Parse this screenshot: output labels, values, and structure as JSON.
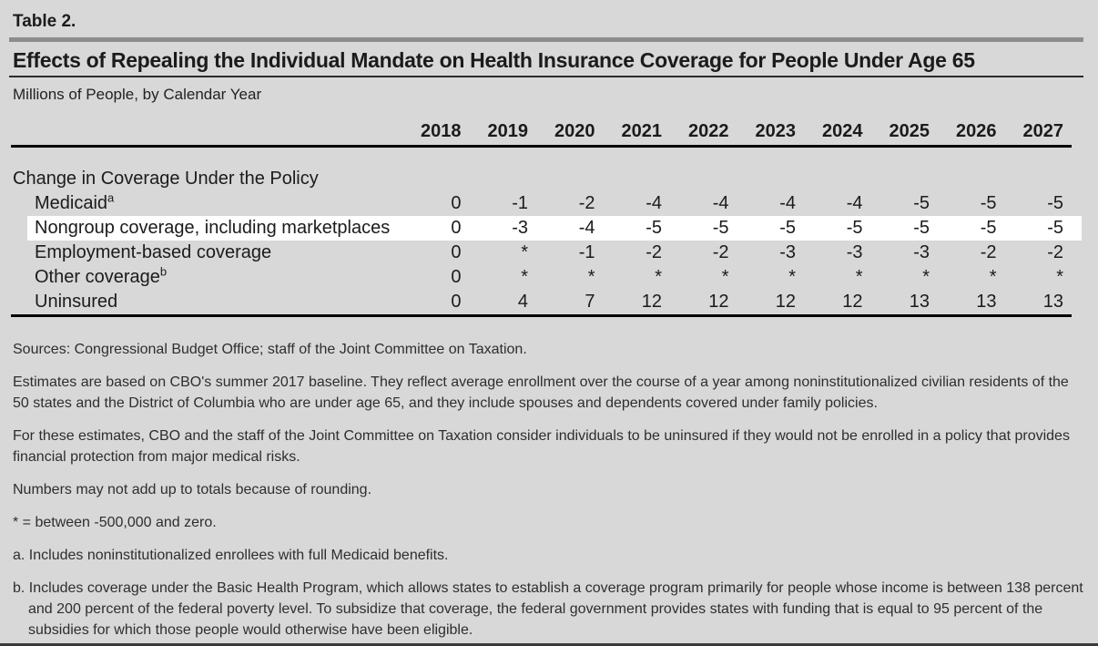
{
  "page": {
    "table_label": "Table 2.",
    "title": "Effects of Repealing the Individual Mandate on Health Insurance Coverage for People Under Age 65",
    "subtitle": "Millions of People, by Calendar Year"
  },
  "colors": {
    "background": "#d8d8d8",
    "highlight_row": "#ffffff",
    "rule_gray": "#8d8d8d",
    "rule_black": "#000000"
  },
  "table": {
    "years": [
      "2018",
      "2019",
      "2020",
      "2021",
      "2022",
      "2023",
      "2024",
      "2025",
      "2026",
      "2027"
    ],
    "section_header": "Change in Coverage Under the Policy",
    "rows": [
      {
        "label": "Medicaid",
        "sup": "a",
        "values": [
          "0",
          "-1",
          "-2",
          "-4",
          "-4",
          "-4",
          "-4",
          "-5",
          "-5",
          "-5"
        ]
      },
      {
        "label": "Nongroup coverage, including marketplaces",
        "values": [
          "0",
          "-3",
          "-4",
          "-5",
          "-5",
          "-5",
          "-5",
          "-5",
          "-5",
          "-5"
        ]
      },
      {
        "label": "Employment-based coverage",
        "values": [
          "0",
          "*",
          "-1",
          "-2",
          "-2",
          "-3",
          "-3",
          "-3",
          "-2",
          "-2"
        ]
      },
      {
        "label": "Other coverage",
        "sup": "b",
        "values": [
          "0",
          "*",
          "*",
          "*",
          "*",
          "*",
          "*",
          "*",
          "*",
          "*"
        ]
      },
      {
        "label": "Uninsured",
        "values": [
          "0",
          "4",
          "7",
          "12",
          "12",
          "12",
          "12",
          "13",
          "13",
          "13"
        ]
      }
    ]
  },
  "notes": {
    "sources": "Sources: Congressional Budget Office; staff of the Joint Committee on Taxation.",
    "para_baseline": "Estimates are based on CBO's summer 2017 baseline. They reflect average enrollment over the course of a year among noninstitutionalized civilian residents of the 50 states and the District of Columbia who are under age 65, and they include spouses and dependents covered under family policies.",
    "para_uninsured_definition": "For these estimates, CBO and the staff of the Joint Committee on Taxation consider individuals to be uninsured if they would not be enrolled in a policy that provides financial protection from major medical risks.",
    "para_rounding": "Numbers may not add up to totals because of rounding.",
    "para_asterisk": "* = between -500,000 and zero.",
    "footnote_a": "a. Includes noninstitutionalized enrollees with full Medicaid benefits.",
    "footnote_b": "b. Includes coverage under the Basic Health Program, which allows states to establish a coverage program primarily for people whose income is between 138 percent and 200 percent of the federal poverty level. To subsidize that coverage, the federal government provides states with funding that is equal to 95 percent of the subsidies for which those people would otherwise have been eligible."
  }
}
